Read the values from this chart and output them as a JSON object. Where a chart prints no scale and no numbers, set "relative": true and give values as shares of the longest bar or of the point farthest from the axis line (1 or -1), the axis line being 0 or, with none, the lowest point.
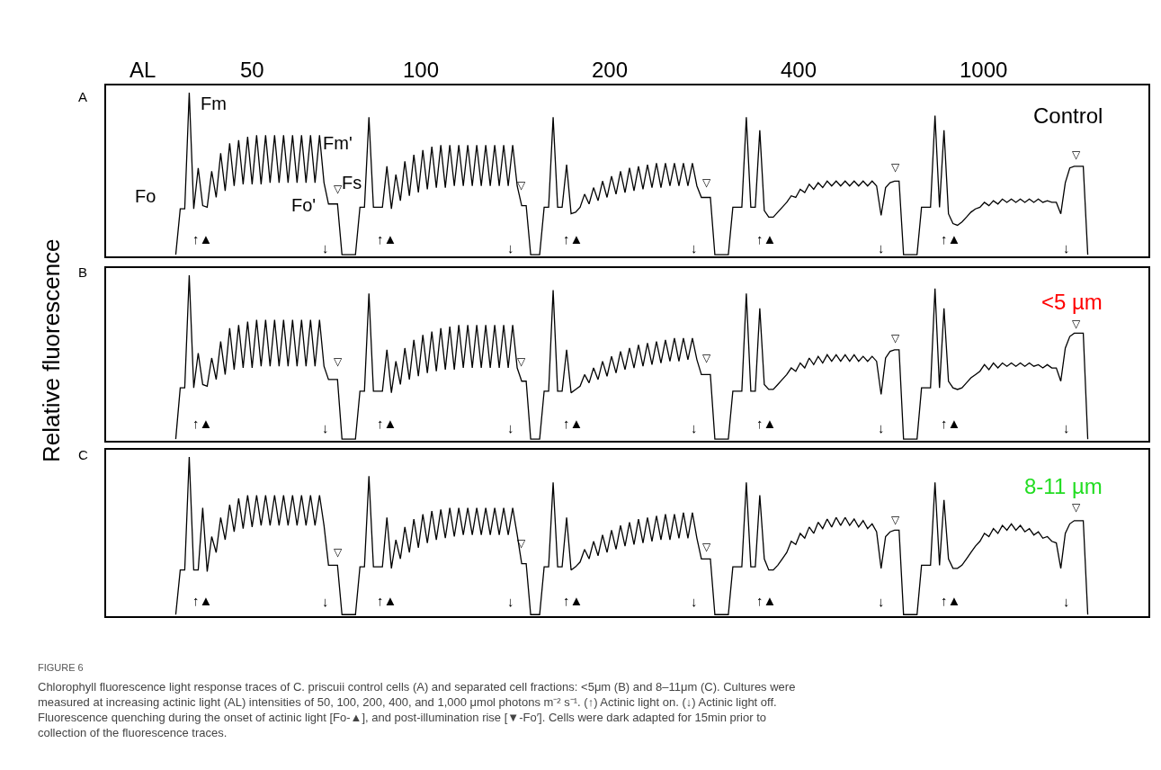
{
  "chart_data": [
    {
      "type": "line",
      "relative": true,
      "categories": [
        null,
        null,
        null,
        null,
        null,
        null,
        null,
        null,
        null,
        null,
        null,
        null,
        null,
        null,
        null,
        null,
        null,
        null,
        null,
        null,
        null,
        null,
        null,
        null,
        null,
        null,
        null,
        null,
        null,
        null,
        null,
        null,
        null,
        null,
        null,
        null,
        null,
        null,
        null,
        null,
        null,
        null,
        null,
        null,
        null,
        null,
        null,
        null,
        null,
        null,
        null,
        null,
        null,
        null,
        null,
        null,
        null,
        null,
        null,
        null,
        null,
        null,
        null,
        null,
        null,
        null,
        null,
        null,
        null,
        null,
        null,
        null,
        null,
        null,
        null,
        null,
        null,
        null,
        null,
        null,
        null,
        null,
        null,
        null,
        null,
        null,
        null,
        null,
        null,
        null,
        null,
        null,
        null,
        null,
        null,
        null,
        null,
        null,
        null,
        null,
        null,
        null,
        null,
        null,
        null,
        null,
        null,
        null,
        null,
        null,
        null,
        null,
        null,
        null,
        null,
        null,
        null,
        null,
        null,
        null,
        null,
        null,
        null,
        null,
        null,
        null,
        null,
        null,
        null,
        null,
        null,
        null,
        null,
        null,
        null,
        null,
        null,
        null,
        null,
        null,
        null,
        null,
        null,
        null,
        null,
        null,
        null,
        null,
        null,
        null,
        null,
        null,
        null,
        null,
        null,
        null,
        null,
        null,
        null,
        null,
        null,
        null,
        null,
        null,
        null,
        null,
        null,
        null,
        null,
        null,
        null,
        null,
        null,
        null,
        null,
        null,
        null,
        null,
        null,
        null,
        null,
        null,
        null,
        null,
        null,
        null,
        null,
        null,
        null,
        null,
        null,
        null,
        null,
        null,
        null,
        null,
        null,
        null,
        null,
        null,
        null,
        null,
        null,
        null,
        null,
        null,
        null,
        null,
        null,
        null,
        null,
        null,
        null,
        null,
        null,
        null,
        null,
        null,
        null,
        null,
        null,
        null,
        null,
        null,
        null,
        null,
        null,
        null,
        null,
        null,
        null,
        null
      ],
      "series": [
        {
          "color": "#000000",
          "line_style": "solid",
          "values": [
            null,
            null,
            null,
            null,
            null,
            null,
            null,
            null,
            null,
            null,
            null,
            null,
            null,
            null,
            null,
            0.01,
            0.29,
            0.29,
            1.0,
            0.29,
            0.54,
            0.31,
            0.3,
            0.52,
            0.36,
            0.63,
            0.4,
            0.69,
            0.43,
            0.71,
            0.44,
            0.73,
            0.44,
            0.74,
            0.44,
            0.74,
            0.45,
            0.74,
            0.45,
            0.74,
            0.45,
            0.74,
            0.45,
            0.74,
            0.45,
            0.74,
            0.45,
            0.74,
            0.45,
            0.32,
            0.32,
            0.32,
            0.01,
            0.01,
            0.01,
            0.01,
            0.3,
            0.3,
            0.85,
            0.3,
            0.3,
            0.3,
            0.55,
            0.29,
            0.5,
            0.34,
            0.58,
            0.37,
            0.62,
            0.39,
            0.65,
            0.41,
            0.67,
            0.42,
            0.68,
            0.42,
            0.68,
            0.43,
            0.68,
            0.43,
            0.68,
            0.43,
            0.68,
            0.43,
            0.68,
            0.43,
            0.68,
            0.43,
            0.68,
            0.43,
            0.68,
            0.43,
            0.31,
            0.31,
            0.01,
            0.01,
            0.01,
            0.3,
            0.3,
            0.85,
            0.3,
            0.3,
            0.56,
            0.26,
            0.27,
            0.3,
            0.38,
            0.32,
            0.42,
            0.34,
            0.46,
            0.36,
            0.49,
            0.38,
            0.52,
            0.39,
            0.54,
            0.4,
            0.55,
            0.41,
            0.56,
            0.42,
            0.57,
            0.42,
            0.57,
            0.43,
            0.57,
            0.43,
            0.57,
            0.43,
            0.57,
            0.43,
            0.36,
            0.36,
            0.36,
            0.01,
            0.01,
            0.01,
            0.01,
            0.3,
            0.3,
            0.3,
            0.85,
            0.3,
            0.3,
            0.77,
            0.28,
            0.24,
            0.24,
            0.27,
            0.3,
            0.33,
            0.37,
            0.36,
            0.41,
            0.39,
            0.44,
            0.41,
            0.45,
            0.42,
            0.46,
            0.43,
            0.46,
            0.43,
            0.46,
            0.43,
            0.46,
            0.43,
            0.46,
            0.43,
            0.46,
            0.43,
            0.25,
            0.42,
            0.45,
            0.46,
            0.46,
            0.01,
            0.01,
            0.01,
            0.01,
            0.3,
            0.3,
            0.3,
            0.86,
            0.3,
            0.77,
            0.26,
            0.2,
            0.19,
            0.21,
            0.24,
            0.27,
            0.29,
            0.3,
            0.33,
            0.31,
            0.34,
            0.32,
            0.35,
            0.33,
            0.35,
            0.33,
            0.35,
            0.33,
            0.35,
            0.33,
            0.35,
            0.33,
            0.34,
            0.33,
            0.33,
            0.26,
            0.45,
            0.54,
            0.55,
            0.55,
            0.55,
            0.01,
            null,
            null,
            null,
            null,
            null,
            null,
            null,
            null,
            null,
            null,
            null,
            null,
            null
          ]
        }
      ],
      "annotations": [
        "A",
        "AL",
        "50",
        "100",
        "200",
        "400",
        "1000",
        "Control",
        "Fm",
        "Fm'",
        "Fs",
        "Fo",
        "Fo'",
        "↑▲",
        "▽",
        "↓",
        "↑▲",
        "▽",
        "↓",
        "↑▲",
        "▽",
        "↓",
        "↑▲",
        "▽",
        "↓",
        "↑▲",
        "▽",
        "↓"
      ]
    },
    {
      "type": "line",
      "relative": true,
      "ylabel": "Relative fluorescence",
      "categories": [
        null,
        null,
        null,
        null,
        null,
        null,
        null,
        null,
        null,
        null,
        null,
        null,
        null,
        null,
        null,
        null,
        null,
        null,
        null,
        null,
        null,
        null,
        null,
        null,
        null,
        null,
        null,
        null,
        null,
        null,
        null,
        null,
        null,
        null,
        null,
        null,
        null,
        null,
        null,
        null,
        null,
        null,
        null,
        null,
        null,
        null,
        null,
        null,
        null,
        null,
        null,
        null,
        null,
        null,
        null,
        null,
        null,
        null,
        null,
        null,
        null,
        null,
        null,
        null,
        null,
        null,
        null,
        null,
        null,
        null,
        null,
        null,
        null,
        null,
        null,
        null,
        null,
        null,
        null,
        null,
        null,
        null,
        null,
        null,
        null,
        null,
        null,
        null,
        null,
        null,
        null,
        null,
        null,
        null,
        null,
        null,
        null,
        null,
        null,
        null,
        null,
        null,
        null,
        null,
        null,
        null,
        null,
        null,
        null,
        null,
        null,
        null,
        null,
        null,
        null,
        null,
        null,
        null,
        null,
        null,
        null,
        null,
        null,
        null,
        null,
        null,
        null,
        null,
        null,
        null,
        null,
        null,
        null,
        null,
        null,
        null,
        null,
        null,
        null,
        null,
        null,
        null,
        null,
        null,
        null,
        null,
        null,
        null,
        null,
        null,
        null,
        null,
        null,
        null,
        null,
        null,
        null,
        null,
        null,
        null,
        null,
        null,
        null,
        null,
        null,
        null,
        null,
        null,
        null,
        null,
        null,
        null,
        null,
        null,
        null,
        null,
        null,
        null,
        null,
        null,
        null,
        null,
        null,
        null,
        null,
        null,
        null,
        null,
        null,
        null,
        null,
        null,
        null,
        null,
        null,
        null,
        null,
        null,
        null,
        null,
        null,
        null,
        null,
        null,
        null,
        null,
        null,
        null,
        null,
        null,
        null,
        null,
        null,
        null,
        null,
        null,
        null,
        null,
        null,
        null,
        null,
        null,
        null,
        null,
        null,
        null,
        null,
        null,
        null,
        null,
        null,
        null
      ],
      "series": [
        {
          "color": "#000000",
          "line_style": "solid",
          "values": [
            null,
            null,
            null,
            null,
            null,
            null,
            null,
            null,
            null,
            null,
            null,
            null,
            null,
            null,
            null,
            0.01,
            0.32,
            0.32,
            1.0,
            0.32,
            0.53,
            0.34,
            0.33,
            0.5,
            0.37,
            0.6,
            0.4,
            0.68,
            0.43,
            0.7,
            0.44,
            0.72,
            0.44,
            0.73,
            0.45,
            0.73,
            0.45,
            0.73,
            0.45,
            0.73,
            0.45,
            0.73,
            0.45,
            0.73,
            0.45,
            0.73,
            0.45,
            0.73,
            0.45,
            0.37,
            0.37,
            0.37,
            0.01,
            0.01,
            0.01,
            0.01,
            0.3,
            0.3,
            0.89,
            0.3,
            0.3,
            0.3,
            0.55,
            0.29,
            0.48,
            0.34,
            0.56,
            0.37,
            0.61,
            0.39,
            0.64,
            0.41,
            0.66,
            0.42,
            0.68,
            0.43,
            0.69,
            0.43,
            0.7,
            0.44,
            0.7,
            0.44,
            0.7,
            0.44,
            0.7,
            0.44,
            0.7,
            0.44,
            0.7,
            0.44,
            0.7,
            0.44,
            0.36,
            0.36,
            0.01,
            0.01,
            0.01,
            0.3,
            0.3,
            0.91,
            0.3,
            0.3,
            0.55,
            0.29,
            0.31,
            0.33,
            0.4,
            0.35,
            0.44,
            0.37,
            0.48,
            0.39,
            0.51,
            0.41,
            0.54,
            0.43,
            0.56,
            0.44,
            0.58,
            0.45,
            0.59,
            0.46,
            0.6,
            0.47,
            0.61,
            0.48,
            0.62,
            0.48,
            0.62,
            0.49,
            0.62,
            0.49,
            0.4,
            0.4,
            0.4,
            0.01,
            0.01,
            0.01,
            0.01,
            0.3,
            0.3,
            0.3,
            0.89,
            0.3,
            0.3,
            0.8,
            0.34,
            0.31,
            0.31,
            0.34,
            0.37,
            0.4,
            0.44,
            0.42,
            0.47,
            0.44,
            0.5,
            0.46,
            0.51,
            0.47,
            0.52,
            0.48,
            0.52,
            0.48,
            0.52,
            0.48,
            0.52,
            0.48,
            0.51,
            0.48,
            0.51,
            0.48,
            0.28,
            0.5,
            0.54,
            0.55,
            0.55,
            0.01,
            0.01,
            0.01,
            0.01,
            0.32,
            0.32,
            0.32,
            0.92,
            0.32,
            0.8,
            0.36,
            0.32,
            0.31,
            0.32,
            0.35,
            0.38,
            0.4,
            0.42,
            0.46,
            0.43,
            0.47,
            0.44,
            0.47,
            0.45,
            0.47,
            0.45,
            0.47,
            0.45,
            0.47,
            0.45,
            0.46,
            0.44,
            0.46,
            0.44,
            0.44,
            0.36,
            0.56,
            0.63,
            0.65,
            0.65,
            0.65,
            0.01,
            null,
            null,
            null,
            null,
            null,
            null,
            null,
            null,
            null,
            null,
            null,
            null,
            null
          ]
        }
      ],
      "annotations": [
        "B",
        "<5 µm",
        "↑▲",
        "▽",
        "↓",
        "↑▲",
        "▽",
        "↓",
        "↑▲",
        "▽",
        "↓",
        "↑▲",
        "▽",
        "↓",
        "↑▲",
        "▽",
        "↓"
      ]
    },
    {
      "type": "line",
      "relative": true,
      "categories": [
        null,
        null,
        null,
        null,
        null,
        null,
        null,
        null,
        null,
        null,
        null,
        null,
        null,
        null,
        null,
        null,
        null,
        null,
        null,
        null,
        null,
        null,
        null,
        null,
        null,
        null,
        null,
        null,
        null,
        null,
        null,
        null,
        null,
        null,
        null,
        null,
        null,
        null,
        null,
        null,
        null,
        null,
        null,
        null,
        null,
        null,
        null,
        null,
        null,
        null,
        null,
        null,
        null,
        null,
        null,
        null,
        null,
        null,
        null,
        null,
        null,
        null,
        null,
        null,
        null,
        null,
        null,
        null,
        null,
        null,
        null,
        null,
        null,
        null,
        null,
        null,
        null,
        null,
        null,
        null,
        null,
        null,
        null,
        null,
        null,
        null,
        null,
        null,
        null,
        null,
        null,
        null,
        null,
        null,
        null,
        null,
        null,
        null,
        null,
        null,
        null,
        null,
        null,
        null,
        null,
        null,
        null,
        null,
        null,
        null,
        null,
        null,
        null,
        null,
        null,
        null,
        null,
        null,
        null,
        null,
        null,
        null,
        null,
        null,
        null,
        null,
        null,
        null,
        null,
        null,
        null,
        null,
        null,
        null,
        null,
        null,
        null,
        null,
        null,
        null,
        null,
        null,
        null,
        null,
        null,
        null,
        null,
        null,
        null,
        null,
        null,
        null,
        null,
        null,
        null,
        null,
        null,
        null,
        null,
        null,
        null,
        null,
        null,
        null,
        null,
        null,
        null,
        null,
        null,
        null,
        null,
        null,
        null,
        null,
        null,
        null,
        null,
        null,
        null,
        null,
        null,
        null,
        null,
        null,
        null,
        null,
        null,
        null,
        null,
        null,
        null,
        null,
        null,
        null,
        null,
        null,
        null,
        null,
        null,
        null,
        null,
        null,
        null,
        null,
        null,
        null,
        null,
        null,
        null,
        null,
        null,
        null,
        null,
        null,
        null,
        null,
        null,
        null,
        null,
        null,
        null,
        null,
        null,
        null,
        null,
        null,
        null,
        null,
        null,
        null,
        null,
        null
      ],
      "series": [
        {
          "color": "#000000",
          "line_style": "solid",
          "values": [
            null,
            null,
            null,
            null,
            null,
            null,
            null,
            null,
            null,
            null,
            null,
            null,
            null,
            null,
            null,
            0.01,
            0.29,
            0.29,
            1.0,
            0.29,
            0.29,
            0.68,
            0.28,
            0.5,
            0.4,
            0.62,
            0.48,
            0.7,
            0.53,
            0.74,
            0.55,
            0.76,
            0.56,
            0.76,
            0.57,
            0.76,
            0.57,
            0.76,
            0.57,
            0.76,
            0.57,
            0.76,
            0.57,
            0.76,
            0.57,
            0.76,
            0.57,
            0.76,
            0.57,
            0.32,
            0.32,
            0.32,
            0.01,
            0.01,
            0.01,
            0.01,
            0.31,
            0.31,
            0.88,
            0.31,
            0.31,
            0.31,
            0.62,
            0.3,
            0.48,
            0.36,
            0.56,
            0.4,
            0.61,
            0.43,
            0.64,
            0.46,
            0.66,
            0.48,
            0.67,
            0.49,
            0.68,
            0.5,
            0.68,
            0.51,
            0.68,
            0.51,
            0.68,
            0.51,
            0.68,
            0.51,
            0.68,
            0.51,
            0.68,
            0.51,
            0.68,
            0.51,
            0.33,
            0.33,
            0.01,
            0.01,
            0.01,
            0.31,
            0.31,
            0.84,
            0.31,
            0.31,
            0.62,
            0.29,
            0.31,
            0.34,
            0.42,
            0.36,
            0.47,
            0.38,
            0.51,
            0.4,
            0.54,
            0.42,
            0.57,
            0.44,
            0.59,
            0.45,
            0.61,
            0.46,
            0.62,
            0.47,
            0.63,
            0.48,
            0.64,
            0.48,
            0.64,
            0.49,
            0.65,
            0.49,
            0.65,
            0.49,
            0.36,
            0.36,
            0.36,
            0.01,
            0.01,
            0.01,
            0.01,
            0.31,
            0.31,
            0.31,
            0.84,
            0.31,
            0.31,
            0.76,
            0.36,
            0.29,
            0.29,
            0.32,
            0.36,
            0.4,
            0.47,
            0.45,
            0.52,
            0.49,
            0.56,
            0.52,
            0.59,
            0.55,
            0.61,
            0.56,
            0.62,
            0.57,
            0.62,
            0.57,
            0.61,
            0.56,
            0.6,
            0.55,
            0.58,
            0.53,
            0.3,
            0.5,
            0.53,
            0.54,
            0.54,
            0.01,
            0.01,
            0.01,
            0.01,
            0.32,
            0.32,
            0.32,
            0.84,
            0.32,
            0.73,
            0.36,
            0.3,
            0.3,
            0.32,
            0.36,
            0.4,
            0.44,
            0.47,
            0.52,
            0.5,
            0.55,
            0.52,
            0.57,
            0.54,
            0.58,
            0.54,
            0.57,
            0.53,
            0.55,
            0.51,
            0.53,
            0.49,
            0.5,
            0.47,
            0.46,
            0.3,
            0.52,
            0.58,
            0.6,
            0.6,
            0.6,
            0.01,
            null,
            null,
            null,
            null,
            null,
            null,
            null,
            null,
            null,
            null,
            null,
            null,
            null
          ]
        }
      ],
      "annotations": [
        "C",
        "8-11 µm",
        "↑▲",
        "▽",
        "↓",
        "↑▲",
        "▽",
        "↓",
        "↑▲",
        "▽",
        "↓",
        "↑▲",
        "▽",
        "↓",
        "↑▲",
        "▽",
        "↓",
        "FIGURE 6",
        "Chlorophyll fluorescence light response traces of C. priscuii control cells (A) and separated cell fractions: <5μm (B) and 8–11μm (C). Cultures were\nmeasured at increasing actinic light (AL) intensities of 50, 100, 200, 400, and 1,000 μmol photons m⁻² s⁻¹. (↑) Actinic light on. (↓) Actinic light off.\nFluorescence quenching during the onset of actinic light [Fo-▲], and post-illumination rise [▼-Fo′]. Cells were dark adapted for 15min prior to\ncollection of the fluorescence traces."
      ]
    }
  ]
}
